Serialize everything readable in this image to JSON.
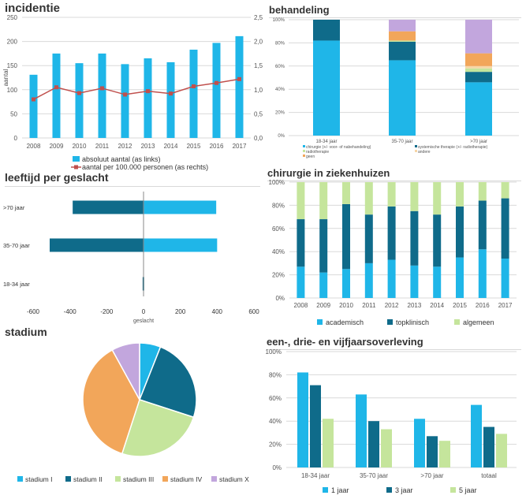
{
  "colors": {
    "cyan": "#1fb6e8",
    "teal": "#0f6b8a",
    "lightgreen": "#c5e59c",
    "orange": "#f2a65a",
    "purple": "#c2a6dd",
    "tan": "#f7d6a6",
    "red": "#c0504d",
    "grid": "#d9d9d9",
    "axis_text": "#555555"
  },
  "chart_data": [
    {
      "id": "incidentie",
      "type": "bar",
      "title": "incidentie",
      "ylabel": "aantal",
      "categories": [
        "2008",
        "2009",
        "2010",
        "2011",
        "2012",
        "2013",
        "2014",
        "2015",
        "2016",
        "2017"
      ],
      "ylim": [
        0,
        250
      ],
      "y_ticks": [
        "0",
        "50",
        "100",
        "150",
        "200",
        "250"
      ],
      "y2lim": [
        0,
        2.5
      ],
      "y2_ticks": [
        "0,0",
        "0,5",
        "1,0",
        "1,5",
        "2,0",
        "2,5"
      ],
      "series": [
        {
          "name": "absoluut aantal (as links)",
          "type": "bar",
          "color": "#1fb6e8",
          "values": [
            131,
            175,
            155,
            175,
            153,
            165,
            157,
            183,
            197,
            211
          ]
        },
        {
          "name": "aantal per 100.000 personen (as rechts)",
          "type": "line",
          "axis": "right",
          "color": "#c0504d",
          "values": [
            0.8,
            1.05,
            0.93,
            1.03,
            0.9,
            0.97,
            0.92,
            1.07,
            1.14,
            1.22
          ]
        }
      ],
      "grid": true,
      "legend": "bottom"
    },
    {
      "id": "behandeling",
      "type": "bar",
      "stacked": "percent",
      "title": "behandeling",
      "categories": [
        "18-34 jaar",
        "35-70 jaar",
        ">70 jaar"
      ],
      "y_ticks": [
        "0%",
        "20%",
        "40%",
        "60%",
        "80%",
        "100%"
      ],
      "series": [
        {
          "name": "chirurgie (+/- voor- of nabehandeling)",
          "color": "#1fb6e8",
          "values": [
            82,
            65,
            46
          ]
        },
        {
          "name": "systemische therapie (+/- radiotherapie)",
          "color": "#0f6b8a",
          "values": [
            18,
            16,
            9
          ]
        },
        {
          "name": "radiotherapie",
          "color": "#c5e59c",
          "values": [
            0,
            1,
            3
          ]
        },
        {
          "name": "andere",
          "color": "#f7d6a6",
          "values": [
            0,
            0,
            2
          ]
        },
        {
          "name": "geen",
          "color": "#f2a65a",
          "values": [
            0,
            8,
            11
          ]
        },
        {
          "name": "",
          "color": "#c2a6dd",
          "values": [
            0,
            10,
            29
          ]
        }
      ],
      "grid": true,
      "legend": "bottom"
    },
    {
      "id": "leeftijd",
      "type": "bar",
      "orientation": "horizontal",
      "title": "leeftijd per geslacht",
      "xlabel": "geslacht",
      "categories": [
        ">70 jaar",
        "35-70 jaar",
        "18-34 jaar"
      ],
      "xlim": [
        -600,
        600
      ],
      "x_ticks": [
        "-600",
        "-400",
        "-200",
        "0",
        "200",
        "400",
        "600"
      ],
      "series": [
        {
          "name": "",
          "color": "#0f6b8a",
          "values": [
            -385,
            -510,
            -5
          ]
        },
        {
          "name": "",
          "color": "#1fb6e8",
          "values": [
            395,
            400,
            0
          ]
        }
      ],
      "grid": false
    },
    {
      "id": "chirurgie",
      "type": "bar",
      "stacked": "percent",
      "title": "chirurgie in ziekenhuizen",
      "categories": [
        "2008",
        "2009",
        "2010",
        "2011",
        "2012",
        "2013",
        "2014",
        "2015",
        "2016",
        "2017"
      ],
      "y_ticks": [
        "0%",
        "20%",
        "40%",
        "60%",
        "80%",
        "100%"
      ],
      "series": [
        {
          "name": "academisch",
          "color": "#1fb6e8",
          "values": [
            27,
            22,
            25,
            30,
            33,
            28,
            27,
            35,
            42,
            34
          ]
        },
        {
          "name": "topklinisch",
          "color": "#0f6b8a",
          "values": [
            41,
            46,
            56,
            42,
            46,
            47,
            45,
            44,
            42,
            52
          ]
        },
        {
          "name": "algemeen",
          "color": "#c5e59c",
          "values": [
            32,
            32,
            19,
            28,
            21,
            25,
            28,
            21,
            16,
            14
          ]
        }
      ],
      "grid": true,
      "legend": "bottom"
    },
    {
      "id": "stadium",
      "type": "pie",
      "title": "stadium",
      "labels": [
        "stadium I",
        "stadium II",
        "stadium III",
        "stadium IV",
        "stadium X"
      ],
      "values": [
        6,
        24,
        25,
        37,
        8
      ],
      "colors": [
        "#1fb6e8",
        "#0f6b8a",
        "#c5e59c",
        "#f2a65a",
        "#c2a6dd"
      ],
      "legend": "bottom"
    },
    {
      "id": "overleving",
      "type": "bar",
      "title": "een-, drie- en vijfjaarsoverleving",
      "categories": [
        "18-34 jaar",
        "35-70 jaar",
        ">70 jaar",
        "totaal"
      ],
      "y_ticks": [
        "0%",
        "20%",
        "40%",
        "60%",
        "80%",
        "100%"
      ],
      "series": [
        {
          "name": "1 jaar",
          "color": "#1fb6e8",
          "values": [
            82,
            63,
            42,
            54
          ]
        },
        {
          "name": "3 jaar",
          "color": "#0f6b8a",
          "values": [
            71,
            40,
            27,
            35
          ]
        },
        {
          "name": "5 jaar",
          "color": "#c5e59c",
          "values": [
            42,
            33,
            23,
            29
          ]
        }
      ],
      "grid": true,
      "legend": "bottom"
    }
  ]
}
